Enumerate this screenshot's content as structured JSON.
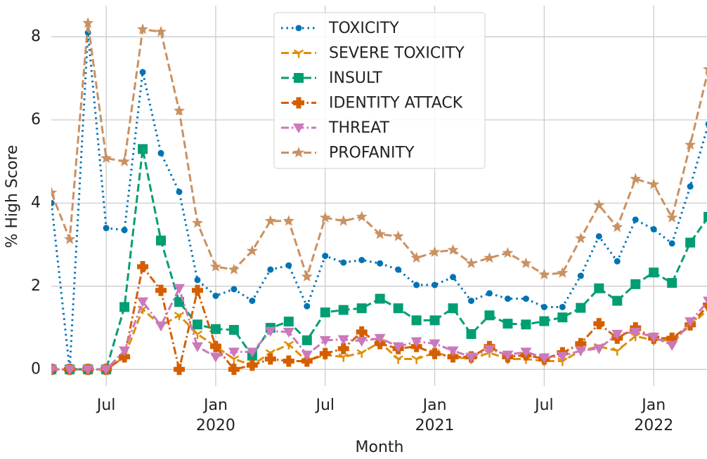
{
  "chart_data": {
    "type": "line",
    "x": [
      "2019-04",
      "2019-05",
      "2019-06",
      "2019-07",
      "2019-08",
      "2019-09",
      "2019-10",
      "2019-11",
      "2019-12",
      "2020-01",
      "2020-02",
      "2020-03",
      "2020-04",
      "2020-05",
      "2020-06",
      "2020-07",
      "2020-08",
      "2020-09",
      "2020-10",
      "2020-11",
      "2020-12",
      "2021-01",
      "2021-02",
      "2021-03",
      "2021-04",
      "2021-05",
      "2021-06",
      "2021-07",
      "2021-08",
      "2021-09",
      "2021-10",
      "2021-11",
      "2021-12",
      "2022-01",
      "2022-02",
      "2022-03",
      "2022-04"
    ],
    "xlabel": "Month",
    "ylabel": "% High Score",
    "ylim": [
      -0.4,
      8.75
    ],
    "yticks": [
      0,
      2,
      4,
      6,
      8
    ],
    "xticks": [
      {
        "value": "2019-07",
        "label": "Jul"
      },
      {
        "value": "2020-01",
        "label": "Jan\n2020"
      },
      {
        "value": "2020-07",
        "label": "Jul"
      },
      {
        "value": "2021-01",
        "label": "Jan\n2021"
      },
      {
        "value": "2021-07",
        "label": "Jul"
      },
      {
        "value": "2022-01",
        "label": "Jan\n2022"
      }
    ],
    "grid": true,
    "legend": "upper center",
    "series": [
      {
        "name": "TOXICITY",
        "color": "#0173b2",
        "marker": "circle",
        "linestyle": "dotted",
        "values": [
          4.0,
          0,
          8.1,
          3.4,
          3.35,
          7.15,
          5.2,
          4.27,
          2.15,
          1.77,
          1.93,
          1.65,
          2.4,
          2.5,
          1.52,
          2.73,
          2.57,
          2.63,
          2.55,
          2.4,
          2.03,
          2.03,
          2.22,
          1.65,
          1.83,
          1.7,
          1.7,
          1.5,
          1.5,
          2.25,
          3.2,
          2.6,
          3.6,
          3.37,
          3.03,
          4.4,
          5.9
        ]
      },
      {
        "name": "SEVERE TOXICITY",
        "color": "#de8f05",
        "marker": "tri_down",
        "linestyle": "dashed",
        "values": [
          0,
          0,
          0,
          0,
          0.3,
          1.45,
          1.05,
          1.3,
          0.85,
          0.55,
          0.25,
          0.1,
          0.4,
          0.6,
          0.2,
          0.35,
          0.3,
          0.4,
          0.65,
          0.25,
          0.25,
          0.4,
          0.3,
          0.25,
          0.4,
          0.25,
          0.25,
          0.2,
          0.2,
          0.45,
          0.55,
          0.45,
          0.8,
          0.7,
          0.7,
          1.05,
          1.45
        ]
      },
      {
        "name": "INSULT",
        "color": "#029e73",
        "marker": "square",
        "linestyle": "dashed",
        "values": [
          0,
          0,
          0,
          0,
          1.5,
          5.3,
          3.1,
          1.62,
          1.08,
          0.97,
          0.95,
          0.33,
          1.0,
          1.15,
          0.7,
          1.37,
          1.43,
          1.47,
          1.7,
          1.47,
          1.18,
          1.18,
          1.47,
          0.85,
          1.3,
          1.1,
          1.08,
          1.16,
          1.25,
          1.48,
          1.95,
          1.65,
          2.05,
          2.33,
          2.08,
          3.05,
          3.67
        ]
      },
      {
        "name": "IDENTITY ATTACK",
        "color": "#d55e00",
        "marker": "plus",
        "linestyle": "dashdot",
        "values": [
          0,
          0,
          0,
          0,
          0.3,
          2.47,
          1.9,
          0,
          1.9,
          0.55,
          0,
          0.1,
          0.25,
          0.2,
          0.2,
          0.38,
          0.5,
          0.9,
          0.62,
          0.5,
          0.55,
          0.38,
          0.3,
          0.3,
          0.55,
          0.3,
          0.35,
          0.25,
          0.4,
          0.62,
          1.1,
          0.75,
          1.0,
          0.75,
          0.75,
          1.07,
          1.55
        ]
      },
      {
        "name": "THREAT",
        "color": "#cc78bc",
        "marker": "triangle_down",
        "linestyle": "dashdot",
        "values": [
          0,
          0,
          0,
          0,
          0.45,
          1.63,
          1.05,
          1.95,
          0.55,
          0.3,
          0.42,
          0.42,
          0.92,
          0.9,
          0.35,
          0.7,
          0.72,
          0.68,
          0.75,
          0.55,
          0.67,
          0.62,
          0.45,
          0.3,
          0.48,
          0.35,
          0.42,
          0.28,
          0.32,
          0.45,
          0.5,
          0.85,
          0.9,
          0.78,
          0.58,
          1.15,
          1.65
        ]
      },
      {
        "name": "PROFANITY",
        "color": "#ca9161",
        "marker": "star",
        "linestyle": "dashed",
        "values": [
          4.25,
          3.13,
          8.33,
          5.08,
          5.0,
          8.18,
          8.12,
          6.22,
          3.52,
          2.47,
          2.4,
          2.85,
          3.57,
          3.57,
          2.23,
          3.65,
          3.57,
          3.67,
          3.25,
          3.2,
          2.68,
          2.82,
          2.87,
          2.55,
          2.68,
          2.8,
          2.55,
          2.28,
          2.32,
          3.15,
          3.95,
          3.42,
          4.58,
          4.45,
          3.65,
          5.4,
          7.22
        ]
      }
    ]
  }
}
